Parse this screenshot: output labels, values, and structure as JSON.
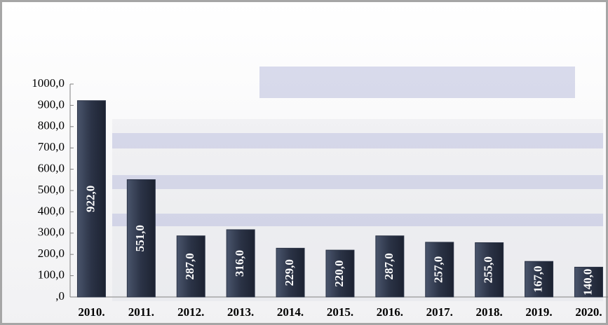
{
  "chart_data": {
    "type": "bar",
    "categories": [
      "2010.",
      "2011.",
      "2012.",
      "2013.",
      "2014.",
      "2015.",
      "2016.",
      "2017.",
      "2018.",
      "2019.",
      "2020."
    ],
    "values": [
      922,
      551,
      287,
      316,
      229,
      220,
      287,
      257,
      255,
      167,
      140
    ],
    "value_labels": [
      "922,0",
      "551,0",
      "287,0",
      "316,0",
      "229,0",
      "220,0",
      "287,0",
      "257,0",
      "255,0",
      "167,0",
      "140,0"
    ],
    "color": "#2b3346",
    "ylim": [
      0,
      1000
    ],
    "yticks": [
      {
        "value": 0,
        "label": ",0"
      },
      {
        "value": 100,
        "label": "100,0"
      },
      {
        "value": 200,
        "label": "200,0"
      },
      {
        "value": 300,
        "label": "300,0"
      },
      {
        "value": 400,
        "label": "400,0"
      },
      {
        "value": 500,
        "label": "500,0"
      },
      {
        "value": 600,
        "label": "600,0"
      },
      {
        "value": 700,
        "label": "700,0"
      },
      {
        "value": 800,
        "label": "800,0"
      },
      {
        "value": 900,
        "label": "900,0"
      },
      {
        "value": 1000,
        "label": "1000,0"
      }
    ],
    "grid": false
  }
}
